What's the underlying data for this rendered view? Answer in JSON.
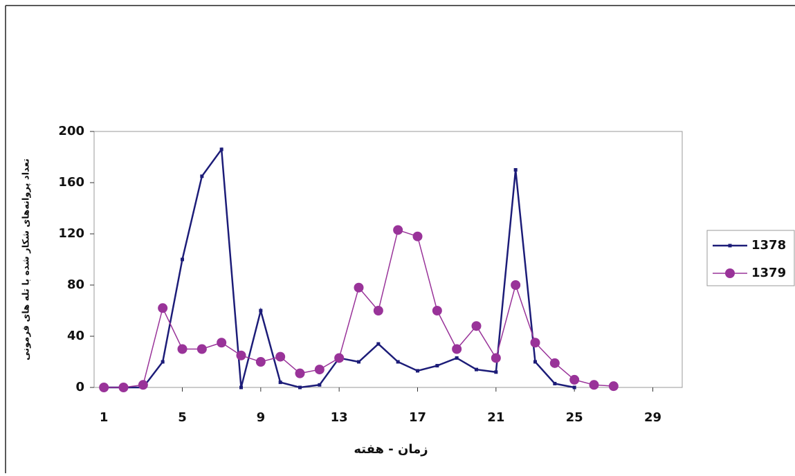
{
  "chart_data": {
    "type": "line",
    "x_label": "زمان - هفته",
    "y_label": "تعداد پروانه‌های شکار شده با تله های فرمونی",
    "x": [
      1,
      2,
      3,
      4,
      5,
      6,
      7,
      8,
      9,
      10,
      11,
      12,
      13,
      14,
      15,
      16,
      17,
      18,
      19,
      20,
      21,
      22,
      23,
      24,
      25,
      26,
      27
    ],
    "xlim": [
      0.5,
      30.5
    ],
    "xticks": [
      1,
      5,
      9,
      13,
      17,
      21,
      25,
      29
    ],
    "ylim": [
      0,
      200
    ],
    "yticks": [
      0,
      40,
      80,
      120,
      160,
      200
    ],
    "legend": "right",
    "series": [
      {
        "name": "1378",
        "color": "#1c1c78",
        "marker": "square",
        "values": [
          0,
          0,
          0,
          20,
          100,
          165,
          186,
          0,
          60,
          4,
          0,
          2,
          23,
          20,
          34,
          20,
          13,
          17,
          23,
          14,
          12,
          170,
          20,
          3,
          0,
          null,
          null
        ]
      },
      {
        "name": "1379",
        "color": "#993399",
        "marker": "circle",
        "values": [
          0,
          0,
          2,
          62,
          30,
          30,
          35,
          25,
          20,
          24,
          11,
          14,
          23,
          78,
          60,
          123,
          118,
          60,
          30,
          48,
          23,
          80,
          35,
          19,
          6,
          2,
          1
        ]
      }
    ]
  }
}
